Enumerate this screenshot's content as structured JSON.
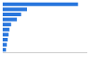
{
  "chart_data": {
    "type": "bar",
    "orientation": "horizontal",
    "categories": [
      null,
      null,
      null,
      null,
      null,
      null,
      null,
      null,
      null,
      null
    ],
    "values": [
      90,
      29,
      22,
      17,
      10,
      8,
      7,
      6,
      5,
      4
    ],
    "color": "#2876dd",
    "xlim": [
      0,
      100
    ],
    "grid": false,
    "tick_labels": false
  }
}
